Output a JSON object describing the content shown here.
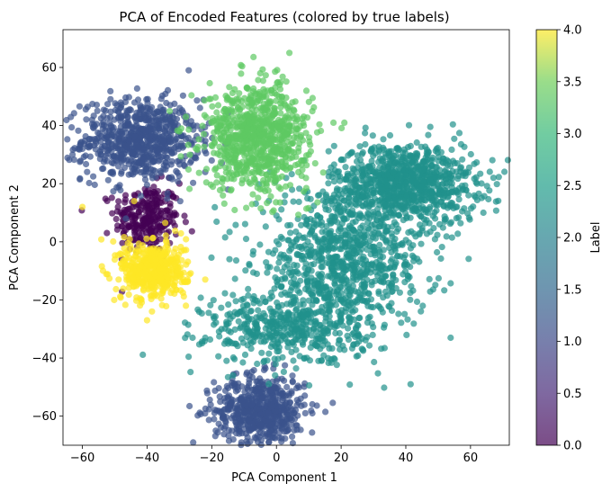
{
  "chart_data": {
    "type": "scatter",
    "title": "PCA of Encoded Features (colored by true labels)",
    "xlabel": "PCA Component 1",
    "ylabel": "PCA Component 2",
    "xlim": [
      -66,
      72
    ],
    "ylim": [
      -70,
      73
    ],
    "xticks": [
      -60,
      -40,
      -20,
      0,
      20,
      40,
      60
    ],
    "yticks": [
      -60,
      -40,
      -20,
      0,
      20,
      40,
      60
    ],
    "xtick_labels": [
      "−60",
      "−40",
      "−20",
      "0",
      "20",
      "40",
      "60"
    ],
    "ytick_labels": [
      "−60",
      "−40",
      "−20",
      "0",
      "20",
      "40",
      "60"
    ],
    "grid": false,
    "colormap": "viridis",
    "point_alpha": 0.7,
    "colorbar": {
      "label": "Label",
      "range": [
        0.0,
        4.0
      ],
      "ticks": [
        0.0,
        0.5,
        1.0,
        1.5,
        2.0,
        2.5,
        3.0,
        3.5,
        4.0
      ],
      "tick_labels": [
        "0.0",
        "0.5",
        "1.0",
        "1.5",
        "2.0",
        "2.5",
        "3.0",
        "3.5",
        "4.0"
      ]
    },
    "series": [
      {
        "label_value": 0,
        "color": "#440154",
        "clusters": [
          {
            "center": [
              -40,
              8
            ],
            "spread": [
              5,
              6
            ],
            "n": 260
          }
        ],
        "points": [
          [
            -49,
            12
          ],
          [
            -30,
            20
          ],
          [
            -35,
            -5
          ],
          [
            -47,
            2
          ]
        ]
      },
      {
        "label_value": 1,
        "color": "#3b528b",
        "clusters": [
          {
            "center": [
              -42,
              35
            ],
            "spread": [
              9,
              7
            ],
            "n": 700
          },
          {
            "center": [
              -5,
              -58
            ],
            "spread": [
              7,
              6
            ],
            "n": 600
          }
        ],
        "points": [
          [
            -60,
            32
          ],
          [
            -57,
            42
          ],
          [
            -22,
            24
          ],
          [
            -15,
            18
          ],
          [
            -20,
            28
          ],
          [
            -3,
            -66
          ],
          [
            5,
            -48
          ],
          [
            -12,
            -50
          ]
        ]
      },
      {
        "label_value": 2,
        "color": "#21918c",
        "clusters": [
          {
            "center": [
              40,
              20
            ],
            "spread": [
              11,
              7
            ],
            "n": 900
          },
          {
            "center": [
              20,
              -8
            ],
            "spread": [
              13,
              12
            ],
            "n": 900
          },
          {
            "center": [
              2,
              -30
            ],
            "spread": [
              12,
              6
            ],
            "n": 400
          }
        ],
        "points": [
          [
            64,
            10
          ],
          [
            62,
            20
          ],
          [
            -22,
            -33
          ],
          [
            13,
            -41
          ],
          [
            -6,
            -42
          ],
          [
            3,
            22
          ],
          [
            -2,
            24
          ]
        ]
      },
      {
        "label_value": 3,
        "color": "#5ec962",
        "clusters": [
          {
            "center": [
              -6,
              36
            ],
            "spread": [
              8,
              9
            ],
            "n": 800
          }
        ],
        "points": [
          [
            4,
            65
          ],
          [
            -20,
            41
          ],
          [
            -28,
            43
          ],
          [
            -30,
            38
          ],
          [
            -33,
            45
          ],
          [
            -18,
            47
          ],
          [
            -5,
            58
          ],
          [
            10,
            30
          ],
          [
            21,
            41
          ],
          [
            12,
            27
          ]
        ]
      },
      {
        "label_value": 4,
        "color": "#fde725",
        "clusters": [
          {
            "center": [
              -38,
              -10
            ],
            "spread": [
              5,
              5
            ],
            "n": 500
          }
        ],
        "points": [
          [
            -60,
            12
          ],
          [
            -44,
            14
          ],
          [
            -22,
            -13
          ],
          [
            -40,
            -27
          ],
          [
            -28,
            -22
          ]
        ]
      }
    ]
  }
}
